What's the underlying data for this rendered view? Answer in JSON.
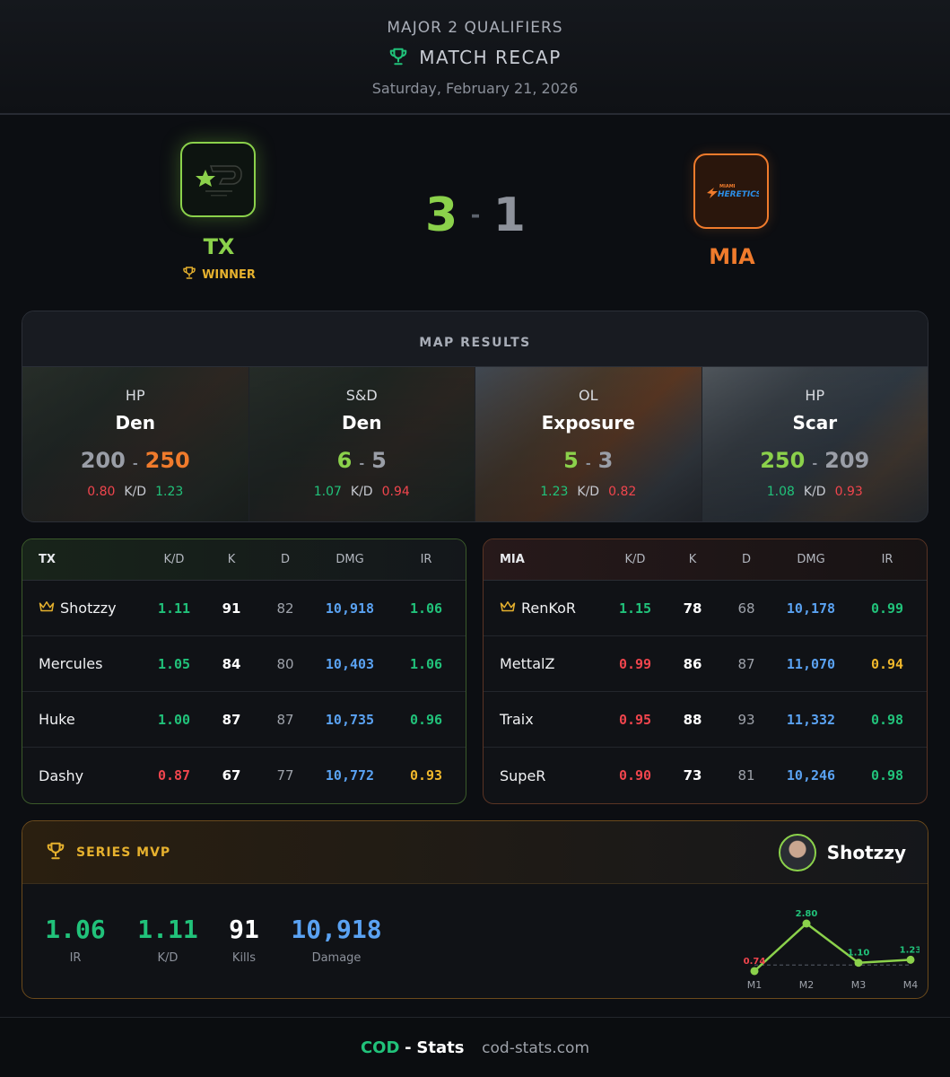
{
  "header": {
    "event": "MAJOR 2 QUALIFIERS",
    "title": "MATCH RECAP",
    "date": "Saturday, February 21, 2026"
  },
  "teams": {
    "home": {
      "abbr": "TX",
      "badge": "WINNER",
      "color": "#8bd14b"
    },
    "away": {
      "abbr": "MIA",
      "color": "#f07b2c"
    }
  },
  "score": {
    "home": "3",
    "sep": "-",
    "away": "1"
  },
  "maps": {
    "title": "MAP RESULTS",
    "kd_label": "K/D",
    "items": [
      {
        "mode": "HP",
        "name": "Den",
        "home_score": "200",
        "away_score": "250",
        "home_kd": "0.80",
        "away_kd": "1.23",
        "winner": "away"
      },
      {
        "mode": "S&D",
        "name": "Den",
        "home_score": "6",
        "away_score": "5",
        "home_kd": "1.07",
        "away_kd": "0.94",
        "winner": "home"
      },
      {
        "mode": "OL",
        "name": "Exposure",
        "home_score": "5",
        "away_score": "3",
        "home_kd": "1.23",
        "away_kd": "0.82",
        "winner": "home"
      },
      {
        "mode": "HP",
        "name": "Scar",
        "home_score": "250",
        "away_score": "209",
        "home_kd": "1.08",
        "away_kd": "0.93",
        "winner": "home"
      }
    ]
  },
  "columns": [
    "K/D",
    "K",
    "D",
    "DMG",
    "IR"
  ],
  "tables": {
    "tx": {
      "team": "TX",
      "rows": [
        {
          "name": "Shotzzy",
          "kd": "1.11",
          "k": "91",
          "d": "82",
          "dmg": "10,918",
          "ir": "1.06",
          "crown": true
        },
        {
          "name": "Mercules",
          "kd": "1.05",
          "k": "84",
          "d": "80",
          "dmg": "10,403",
          "ir": "1.06"
        },
        {
          "name": "Huke",
          "kd": "1.00",
          "k": "87",
          "d": "87",
          "dmg": "10,735",
          "ir": "0.96"
        },
        {
          "name": "Dashy",
          "kd": "0.87",
          "k": "67",
          "d": "77",
          "dmg": "10,772",
          "ir": "0.93"
        }
      ]
    },
    "mia": {
      "team": "MIA",
      "rows": [
        {
          "name": "RenKoR",
          "kd": "1.15",
          "k": "78",
          "d": "68",
          "dmg": "10,178",
          "ir": "0.99",
          "crown": true
        },
        {
          "name": "MettalZ",
          "kd": "0.99",
          "k": "86",
          "d": "87",
          "dmg": "11,070",
          "ir": "0.94"
        },
        {
          "name": "Traix",
          "kd": "0.95",
          "k": "88",
          "d": "93",
          "dmg": "11,332",
          "ir": "0.98"
        },
        {
          "name": "SupeR",
          "kd": "0.90",
          "k": "73",
          "d": "81",
          "dmg": "10,246",
          "ir": "0.98"
        }
      ]
    }
  },
  "mvp": {
    "label": "SERIES MVP",
    "player": "Shotzzy",
    "stats": [
      {
        "value": "1.06",
        "label": "IR",
        "color": "#21c27a"
      },
      {
        "value": "1.11",
        "label": "K/D",
        "color": "#21c27a"
      },
      {
        "value": "91",
        "label": "Kills",
        "color": "#ffffff"
      },
      {
        "value": "10,918",
        "label": "Damage",
        "color": "#5aa2f2"
      }
    ]
  },
  "chart_data": {
    "type": "line",
    "categories": [
      "M1",
      "M2",
      "M3",
      "M4"
    ],
    "values": [
      0.74,
      2.8,
      1.1,
      1.23
    ],
    "labels": [
      "0.74",
      "2.80",
      "1.10",
      "1.23"
    ],
    "reference_line": 1.0,
    "line_color": "#8bd14b"
  },
  "footer": {
    "brand_a": "COD",
    "brand_sep": "-",
    "brand_b": "Stats",
    "domain": "cod-stats.com"
  }
}
